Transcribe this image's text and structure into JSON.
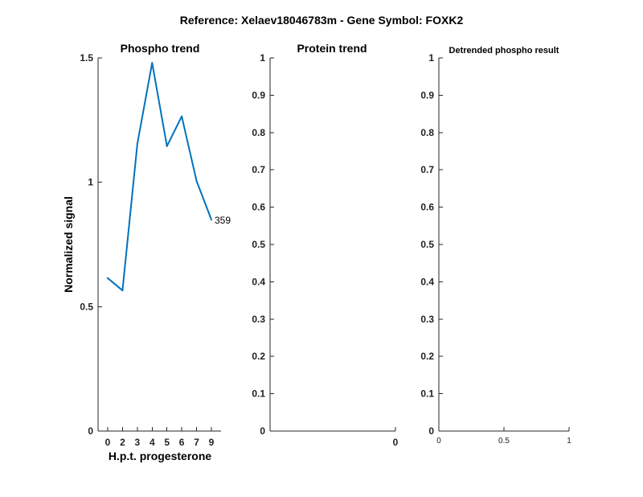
{
  "figure_title": "Reference:  Xelaev18046783m - Gene Symbol:  FOXK2",
  "chart_data": [
    {
      "type": "line",
      "title": "Phospho trend",
      "xlabel": "H.p.t. progesterone",
      "ylabel": "Normalized signal",
      "x_ticks": [
        "0",
        "2",
        "3",
        "4",
        "5",
        "6",
        "7",
        "9"
      ],
      "y_ticks": [
        "0",
        "0.5",
        "1",
        "1.5"
      ],
      "ylim": [
        0,
        1.5
      ],
      "grid": false,
      "series": [
        {
          "color": "#0072BD",
          "end_label": "359",
          "values": [
            0.615,
            0.565,
            1.155,
            1.48,
            1.145,
            1.265,
            1.005,
            0.85
          ]
        }
      ]
    },
    {
      "type": "line",
      "title": "Protein trend",
      "y_ticks": [
        "0",
        "0.1",
        "0.2",
        "0.3",
        "0.4",
        "0.5",
        "0.6",
        "0.7",
        "0.8",
        "0.9",
        "1"
      ],
      "x_ticks": [
        "0"
      ],
      "ylim": [
        0,
        1
      ],
      "grid": false,
      "series": []
    },
    {
      "type": "line",
      "title": "Detrended phospho result",
      "y_ticks": [
        "0",
        "0.1",
        "0.2",
        "0.3",
        "0.4",
        "0.5",
        "0.6",
        "0.7",
        "0.8",
        "0.9",
        "1"
      ],
      "x_ticks": [
        "0",
        "0.5",
        "1"
      ],
      "xlim": [
        0,
        1
      ],
      "ylim": [
        0,
        1
      ],
      "grid": false,
      "series": []
    }
  ]
}
